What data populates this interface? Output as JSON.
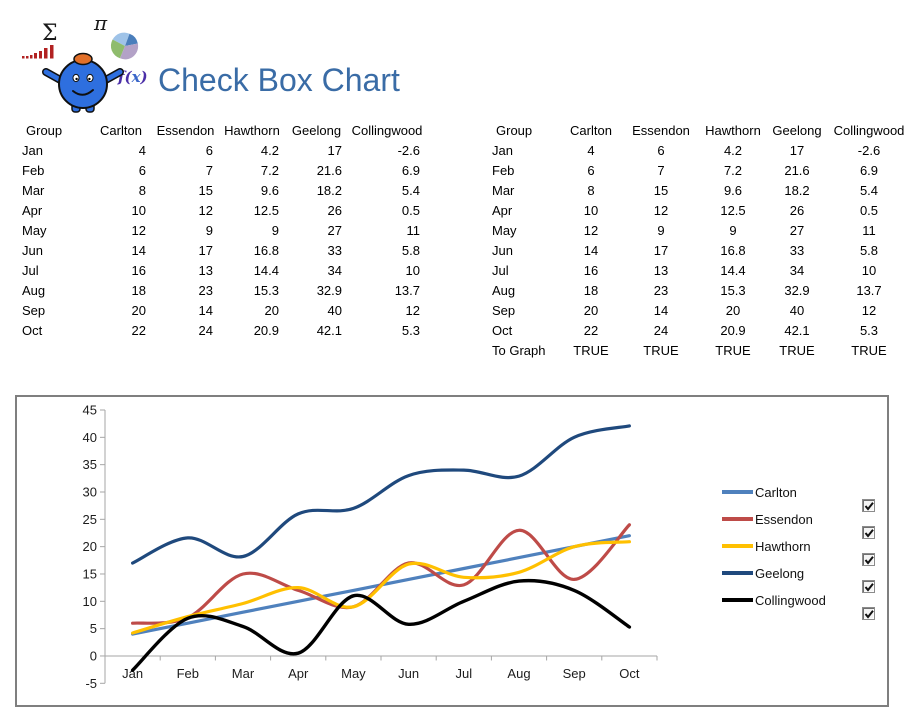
{
  "title": "Check Box Chart",
  "logo": {
    "sigma_glyph": "Σ",
    "pi_glyph": "π",
    "fx_glyph": "f(x)",
    "bar_chart_color": "#B22222",
    "pie_colors": [
      "#8FBC6D",
      "#4A7EBB",
      "#B3A2C7"
    ],
    "mascot_body_color": "#2E6FDF",
    "mascot_cap_color": "#E2702A"
  },
  "tables": {
    "headers": [
      "Group",
      "Carlton",
      "Essendon",
      "Hawthorn",
      "Geelong",
      "Collingwood"
    ],
    "rows": [
      [
        "Jan",
        "4",
        "6",
        "4.2",
        "17",
        "-2.6"
      ],
      [
        "Feb",
        "6",
        "7",
        "7.2",
        "21.6",
        "6.9"
      ],
      [
        "Mar",
        "8",
        "15",
        "9.6",
        "18.2",
        "5.4"
      ],
      [
        "Apr",
        "10",
        "12",
        "12.5",
        "26",
        "0.5"
      ],
      [
        "May",
        "12",
        "9",
        "9",
        "27",
        "11"
      ],
      [
        "Jun",
        "14",
        "17",
        "16.8",
        "33",
        "5.8"
      ],
      [
        "Jul",
        "16",
        "13",
        "14.4",
        "34",
        "10"
      ],
      [
        "Aug",
        "18",
        "23",
        "15.3",
        "32.9",
        "13.7"
      ],
      [
        "Sep",
        "20",
        "14",
        "20",
        "40",
        "12"
      ],
      [
        "Oct",
        "22",
        "24",
        "20.9",
        "42.1",
        "5.3"
      ]
    ],
    "to_graph": {
      "label": "To Graph",
      "values": [
        "TRUE",
        "TRUE",
        "TRUE",
        "TRUE",
        "TRUE"
      ]
    }
  },
  "chart_data": {
    "type": "line",
    "title": "",
    "categories": [
      "Jan",
      "Feb",
      "Mar",
      "Apr",
      "May",
      "Jun",
      "Jul",
      "Aug",
      "Sep",
      "Oct"
    ],
    "series": [
      {
        "name": "Carlton",
        "color": "#4F81BD",
        "values": [
          4,
          6,
          8,
          10,
          12,
          14,
          16,
          18,
          20,
          22
        ],
        "checked": true
      },
      {
        "name": "Essendon",
        "color": "#BE4B48",
        "values": [
          6,
          7,
          15,
          12,
          9,
          17,
          13,
          23,
          14,
          24
        ],
        "checked": true
      },
      {
        "name": "Hawthorn",
        "color": "#FFC000",
        "values": [
          4.2,
          7.2,
          9.6,
          12.5,
          9,
          16.8,
          14.4,
          15.3,
          20,
          20.9
        ],
        "checked": true
      },
      {
        "name": "Geelong",
        "color": "#1F497D",
        "values": [
          17,
          21.6,
          18.2,
          26,
          27,
          33,
          34,
          32.9,
          40,
          42.1
        ],
        "checked": true
      },
      {
        "name": "Collingwood",
        "color": "#000000",
        "values": [
          -2.6,
          6.9,
          5.4,
          0.5,
          11,
          5.8,
          10,
          13.7,
          12,
          5.3
        ],
        "checked": true
      }
    ],
    "ylim": [
      -5,
      45
    ],
    "ytick_step": 5,
    "smooth": true,
    "grid": false,
    "legend_position": "right",
    "axis_color": "#A6A6A6",
    "label_color": "#1C1C1C"
  }
}
